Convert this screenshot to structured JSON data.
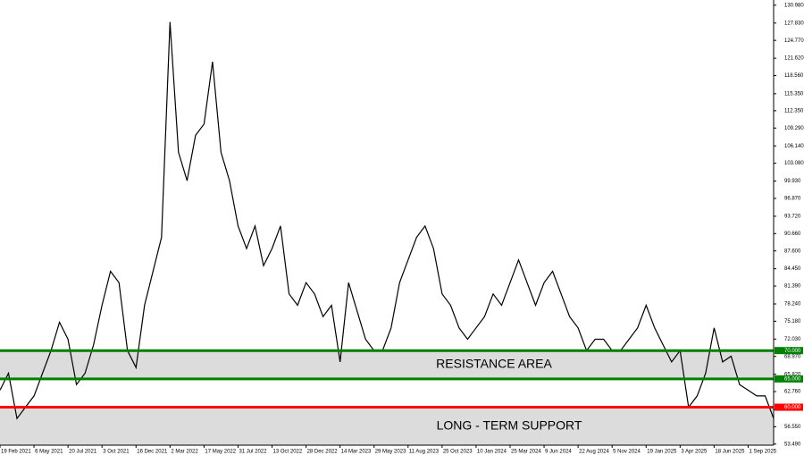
{
  "chart_data": {
    "type": "line",
    "categories": [
      "19 Feb 2021",
      null,
      null,
      null,
      "6 May 2021",
      null,
      null,
      null,
      "20 Jul 2021",
      null,
      null,
      null,
      "3 Oct 2021",
      null,
      null,
      null,
      "16 Dec 2021",
      null,
      null,
      null,
      "2 Mar 2022",
      null,
      null,
      null,
      "17 May 2022",
      null,
      null,
      null,
      "31 Jul 2022",
      null,
      null,
      null,
      "13 Oct 2022",
      null,
      null,
      null,
      "28 Dec 2022",
      null,
      null,
      null,
      "14 Mar 2023",
      null,
      null,
      null,
      "29 May 2023",
      null,
      null,
      null,
      "11 Aug 2023",
      null,
      null,
      null,
      "25 Oct 2023",
      null,
      null,
      null,
      "10 Jan 2024",
      null,
      null,
      null,
      "25 Mar 2024",
      null,
      null,
      null,
      "9 Jun 2024",
      null,
      null,
      null,
      "22 Aug 2024",
      null,
      null,
      null,
      "5 Nov 2024",
      null,
      null,
      null,
      "19 Jan 2025",
      null,
      null,
      null,
      "3 Apr 2025",
      null,
      null,
      null,
      "18 Jun 2025",
      null,
      null,
      null,
      "1 Sep 2025",
      null,
      null,
      null
    ],
    "values": [
      63,
      66,
      58,
      60,
      62,
      66,
      70,
      75,
      72,
      64,
      66,
      71,
      78,
      84,
      82,
      70,
      67,
      78,
      84,
      90,
      128,
      105,
      100,
      108,
      110,
      121,
      105,
      100,
      92,
      88,
      92,
      85,
      88,
      92,
      80,
      78,
      82,
      80,
      76,
      78,
      68,
      82,
      77,
      72,
      70,
      70,
      74,
      82,
      86,
      90,
      92,
      88,
      80,
      78,
      74,
      72,
      74,
      76,
      80,
      78,
      82,
      86,
      82,
      78,
      82,
      84,
      80,
      76,
      74,
      70,
      72,
      72,
      70,
      70,
      72,
      74,
      78,
      74,
      71,
      68,
      70,
      60,
      62,
      66,
      74,
      68,
      69,
      64,
      63,
      62,
      62,
      58
    ],
    "color": "#000000",
    "ylim": [
      53.3,
      131.9
    ],
    "yticks": [
      {
        "value": 130.98,
        "label": "130.980"
      },
      {
        "value": 127.83,
        "label": "127.830"
      },
      {
        "value": 124.77,
        "label": "124.770"
      },
      {
        "value": 121.62,
        "label": "121.620"
      },
      {
        "value": 118.56,
        "label": "118.560"
      },
      {
        "value": 115.35,
        "label": "115.350"
      },
      {
        "value": 112.35,
        "label": "112.350"
      },
      {
        "value": 109.29,
        "label": "109.290"
      },
      {
        "value": 106.14,
        "label": "106.140"
      },
      {
        "value": 103.08,
        "label": "103.080"
      },
      {
        "value": 99.93,
        "label": "99.930"
      },
      {
        "value": 96.87,
        "label": "96.870"
      },
      {
        "value": 93.72,
        "label": "93.720"
      },
      {
        "value": 90.66,
        "label": "90.660"
      },
      {
        "value": 87.6,
        "label": "87.600"
      },
      {
        "value": 84.45,
        "label": "84.450"
      },
      {
        "value": 81.39,
        "label": "81.390"
      },
      {
        "value": 78.24,
        "label": "78.240"
      },
      {
        "value": 75.18,
        "label": "75.180"
      },
      {
        "value": 72.03,
        "label": "72.030"
      },
      {
        "value": 68.97,
        "label": "68.970"
      },
      {
        "value": 65.82,
        "label": "65.820"
      },
      {
        "value": 62.76,
        "label": "62.760"
      },
      {
        "value": 59.61,
        "label": "59.610"
      },
      {
        "value": 56.55,
        "label": "56.550"
      },
      {
        "value": 53.49,
        "label": "53.490"
      }
    ],
    "levels": [
      {
        "value": 70,
        "label": "70.000",
        "color": "#008000"
      },
      {
        "value": 65,
        "label": "65.000",
        "color": "#008000"
      },
      {
        "value": 60,
        "label": "60.000",
        "color": "#ff0000"
      }
    ],
    "annotations": [
      "RESISTANCE AREA",
      "LONG - TERM SUPPORT"
    ]
  }
}
